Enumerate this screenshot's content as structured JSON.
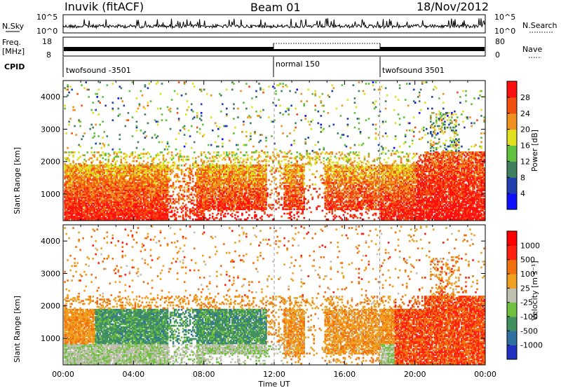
{
  "header": {
    "station": "Inuvik (fitACF)",
    "beam": "Beam 01",
    "date": "18/Nov/2012"
  },
  "top_panels": {
    "nsky_label": "N.Sky",
    "nsky_ticks": [
      "10^5",
      "10^0"
    ],
    "nsearch_label": "N.Search",
    "nsearch_ticks": [
      "10^5",
      "10^0"
    ],
    "freq_label": "Freq.",
    "freq_unit": "[MHz]",
    "freq_ticks": [
      "18",
      "8"
    ],
    "nave_label": "Nave",
    "nave_ticks": [
      "80",
      "0"
    ],
    "cpid_label": "CPID",
    "cpid_segments": [
      {
        "label": "twofsound -3501",
        "start_hour": 0,
        "end_hour": 12
      },
      {
        "label": "normal 150",
        "start_hour": 12,
        "end_hour": 18
      },
      {
        "label": "twofsound 3501",
        "start_hour": 18,
        "end_hour": 24
      }
    ]
  },
  "chart_data": [
    {
      "type": "heatmap",
      "title": "Power",
      "xlabel": "Time UT",
      "ylabel": "Slant Range [km]",
      "x_ticks": [
        "00:00",
        "04:00",
        "08:00",
        "12:00",
        "16:00",
        "20:00",
        "00:00"
      ],
      "y_ticks": [
        1000,
        2000,
        3000,
        4000
      ],
      "xlim": [
        0,
        24
      ],
      "ylim": [
        180,
        4500
      ],
      "colorbar": {
        "label": "Power [dB]",
        "ticks": [
          "4",
          "8",
          "12",
          "16",
          "20",
          "24",
          "28"
        ],
        "colors": [
          "#1010ff",
          "#2040b0",
          "#408060",
          "#60c040",
          "#e0e020",
          "#f09020",
          "#f05010",
          "#ff1010"
        ]
      }
    },
    {
      "type": "heatmap",
      "title": "Velocity",
      "xlabel": "Time UT",
      "ylabel": "Slant Range [km]",
      "x_ticks": [
        "00:00",
        "04:00",
        "08:00",
        "12:00",
        "16:00",
        "20:00",
        "00:00"
      ],
      "y_ticks": [
        1000,
        2000,
        3000,
        4000
      ],
      "xlim": [
        0,
        24
      ],
      "ylim": [
        180,
        4500
      ],
      "colorbar": {
        "label": "Velocity [m s⁻¹]",
        "ticks": [
          "1000",
          "500",
          "100",
          "25",
          "-25",
          "-100",
          "-500",
          "-1000"
        ],
        "colors": [
          "#2030c0",
          "#3070a0",
          "#409060",
          "#70c040",
          "#c0c0b0",
          "#f0a020",
          "#f07010",
          "#ff2010",
          "#ff0000"
        ]
      }
    }
  ]
}
